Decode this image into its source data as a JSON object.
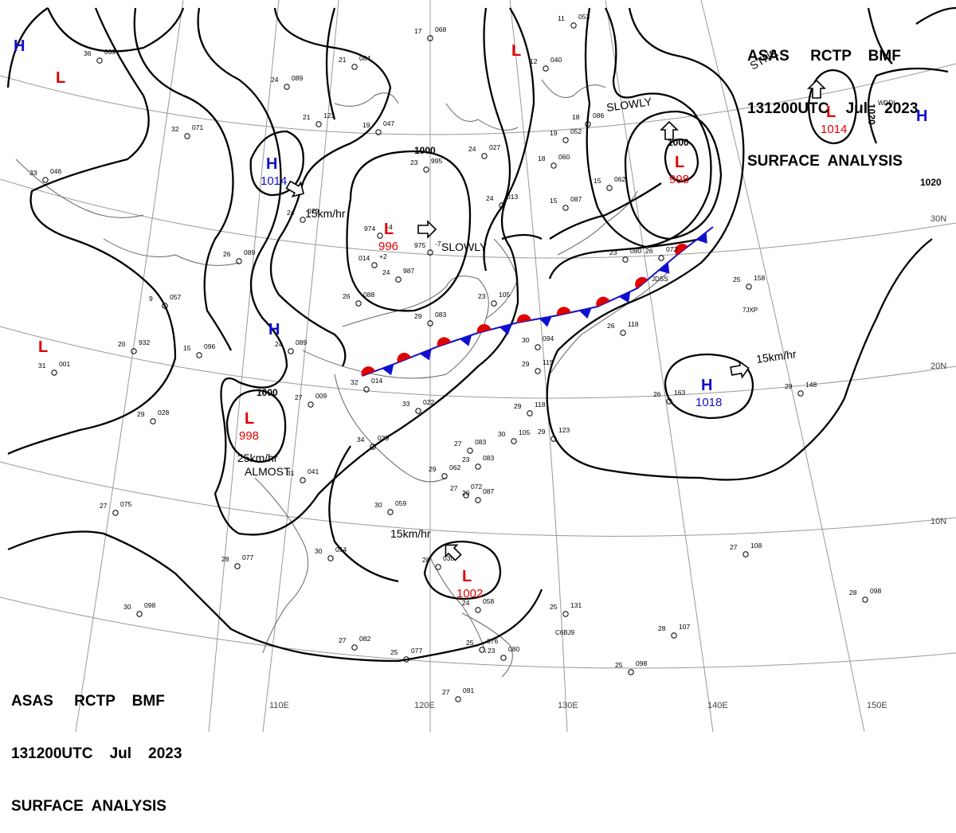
{
  "header_top": {
    "line1": "ASAS     RCTP    BMF",
    "line2": "131200UTC    Jul    2023",
    "line3": "SURFACE  ANALYSIS"
  },
  "header_bottom": {
    "line1": "ASAS     RCTP    BMF",
    "line2": "131200UTC    Jul    2023",
    "line3": "SURFACE  ANALYSIS"
  },
  "longitude_labels": [
    "110E",
    "120E",
    "130E",
    "140E",
    "150E"
  ],
  "latitude_labels": [
    "30N",
    "20N",
    "10N"
  ],
  "isobar_labels": [
    "1000",
    "1000",
    "1000",
    "1020",
    "1020"
  ],
  "pressure_systems": [
    {
      "type": "H",
      "value": ""
    },
    {
      "type": "L",
      "value": ""
    },
    {
      "type": "H",
      "value": "1014"
    },
    {
      "type": "L",
      "value": "996"
    },
    {
      "type": "L",
      "value": ""
    },
    {
      "type": "L",
      "value": "998"
    },
    {
      "type": "L",
      "value": "1014"
    },
    {
      "type": "H",
      "value": ""
    },
    {
      "type": "H",
      "value": ""
    },
    {
      "type": "L",
      "value": ""
    },
    {
      "type": "L",
      "value": "998"
    },
    {
      "type": "H",
      "value": "1018"
    },
    {
      "type": "L",
      "value": "1002"
    }
  ],
  "movement_labels": [
    "15km/hr",
    "SLOWLY",
    "SLOWLY",
    "15km/hr",
    "15km/hr",
    "25km/hr",
    "ALMOST",
    "STNR"
  ],
  "stations": [
    [
      "36",
      "039"
    ],
    [
      "24",
      "089"
    ],
    [
      "21",
      "084"
    ],
    [
      "32",
      "071"
    ],
    [
      "33",
      "046"
    ],
    [
      "17",
      "068"
    ],
    [
      "12",
      "040"
    ],
    [
      "11",
      "053"
    ],
    [
      "21",
      "123"
    ],
    [
      "19",
      "047"
    ],
    [
      "24",
      "027"
    ],
    [
      "23",
      "995"
    ],
    [
      "19",
      "052"
    ],
    [
      "18",
      "060"
    ],
    [
      "15",
      "087"
    ],
    [
      "18",
      "086"
    ],
    [
      "24",
      "013"
    ],
    [
      "15",
      "062"
    ],
    [
      "24",
      "079"
    ],
    [
      "974",
      "+4"
    ],
    [
      "014",
      "+2"
    ],
    [
      "975",
      "-7"
    ],
    [
      "24",
      "987"
    ],
    [
      "26",
      "089"
    ],
    [
      "23",
      "080"
    ],
    [
      "26",
      "072"
    ],
    [
      "25",
      "158"
    ],
    [
      "9",
      "057"
    ],
    [
      "26",
      "088"
    ],
    [
      "29",
      "083"
    ],
    [
      "23",
      "105"
    ],
    [
      "20",
      "932"
    ],
    [
      "15",
      "096"
    ],
    [
      "24",
      "089"
    ],
    [
      "31",
      "001"
    ],
    [
      "29",
      "028"
    ],
    [
      "27",
      "009"
    ],
    [
      "32",
      "014"
    ],
    [
      "33",
      "022"
    ],
    [
      "30",
      "094"
    ],
    [
      "29",
      "115"
    ],
    [
      "26",
      "118"
    ],
    [
      "26",
      "163"
    ],
    [
      "29",
      "148"
    ],
    [
      "29",
      "118"
    ],
    [
      "30",
      "105"
    ],
    [
      "29",
      "123"
    ],
    [
      "34",
      "039"
    ],
    [
      "27",
      "083"
    ],
    [
      "23",
      "083"
    ],
    [
      "29",
      "062"
    ],
    [
      "27",
      "072"
    ],
    [
      "20",
      "087"
    ],
    [
      "31",
      "041"
    ],
    [
      "30",
      "059"
    ],
    [
      "27",
      "075"
    ],
    [
      "28",
      "077"
    ],
    [
      "30",
      "054"
    ],
    [
      "28",
      "030"
    ],
    [
      "30",
      "098"
    ],
    [
      "27",
      "082"
    ],
    [
      "25",
      "077"
    ],
    [
      "24",
      "058"
    ],
    [
      "25",
      "131"
    ],
    [
      "25",
      "076"
    ],
    [
      "23",
      "080"
    ],
    [
      "28",
      "107"
    ],
    [
      "28",
      "098"
    ],
    [
      "27",
      "108"
    ],
    [
      "25",
      "098"
    ],
    [
      "27",
      "091"
    ]
  ],
  "ship_callsigns": [
    "JDSS",
    "7JXP",
    "C6BJ9",
    "WDDI"
  ]
}
